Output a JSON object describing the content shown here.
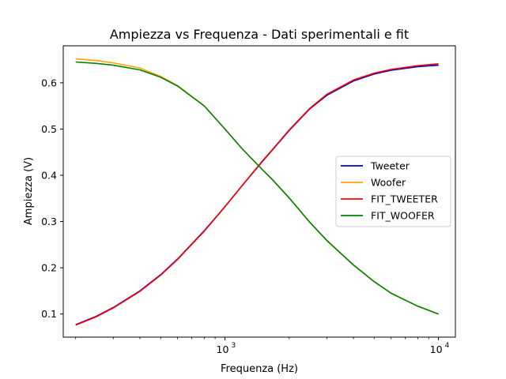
{
  "chart_data": {
    "type": "line",
    "title": "Ampiezza vs Frequenza - Dati sperimentali e fit",
    "xlabel": "Frequenza (Hz)",
    "ylabel": "Ampiezza (V)",
    "xscale": "log",
    "xlim": [
      175,
      12000
    ],
    "ylim": [
      0.05,
      0.68
    ],
    "grid": false,
    "legend_position": "center-right",
    "x_ticks": [
      {
        "value": 1000,
        "base": "10",
        "exp": "3"
      },
      {
        "value": 10000,
        "base": "10",
        "exp": "4"
      }
    ],
    "y_ticks": [
      {
        "value": 0.1,
        "label": "0.1"
      },
      {
        "value": 0.2,
        "label": "0.2"
      },
      {
        "value": 0.3,
        "label": "0.3"
      },
      {
        "value": 0.4,
        "label": "0.4"
      },
      {
        "value": 0.5,
        "label": "0.5"
      },
      {
        "value": 0.6,
        "label": "0.6"
      }
    ],
    "x": [
      200,
      250,
      300,
      400,
      500,
      600,
      800,
      1000,
      1200,
      1500,
      1650,
      2000,
      2500,
      3000,
      4000,
      5000,
      6000,
      8000,
      10000
    ],
    "series": [
      {
        "name": "Tweeter",
        "color": "#0000cc",
        "values": [
          0.077,
          0.095,
          0.114,
          0.15,
          0.185,
          0.219,
          0.28,
          0.332,
          0.377,
          0.43,
          0.452,
          0.497,
          0.544,
          0.573,
          0.604,
          0.619,
          0.627,
          0.635,
          0.638
        ]
      },
      {
        "name": "Woofer",
        "color": "#ffa500",
        "values": [
          0.652,
          0.648,
          0.643,
          0.632,
          0.614,
          0.594,
          0.55,
          0.5,
          0.458,
          0.412,
          0.393,
          0.351,
          0.298,
          0.259,
          0.206,
          0.17,
          0.145,
          0.117,
          0.1
        ]
      },
      {
        "name": "FIT_TWEETER",
        "color": "#ff0000",
        "values": [
          0.076,
          0.094,
          0.113,
          0.149,
          0.184,
          0.218,
          0.279,
          0.332,
          0.377,
          0.431,
          0.453,
          0.498,
          0.545,
          0.575,
          0.606,
          0.621,
          0.629,
          0.637,
          0.641
        ]
      },
      {
        "name": "FIT_WOOFER",
        "color": "#008000",
        "values": [
          0.645,
          0.642,
          0.638,
          0.628,
          0.612,
          0.593,
          0.55,
          0.5,
          0.458,
          0.412,
          0.393,
          0.351,
          0.298,
          0.259,
          0.206,
          0.17,
          0.145,
          0.117,
          0.1
        ]
      }
    ]
  }
}
